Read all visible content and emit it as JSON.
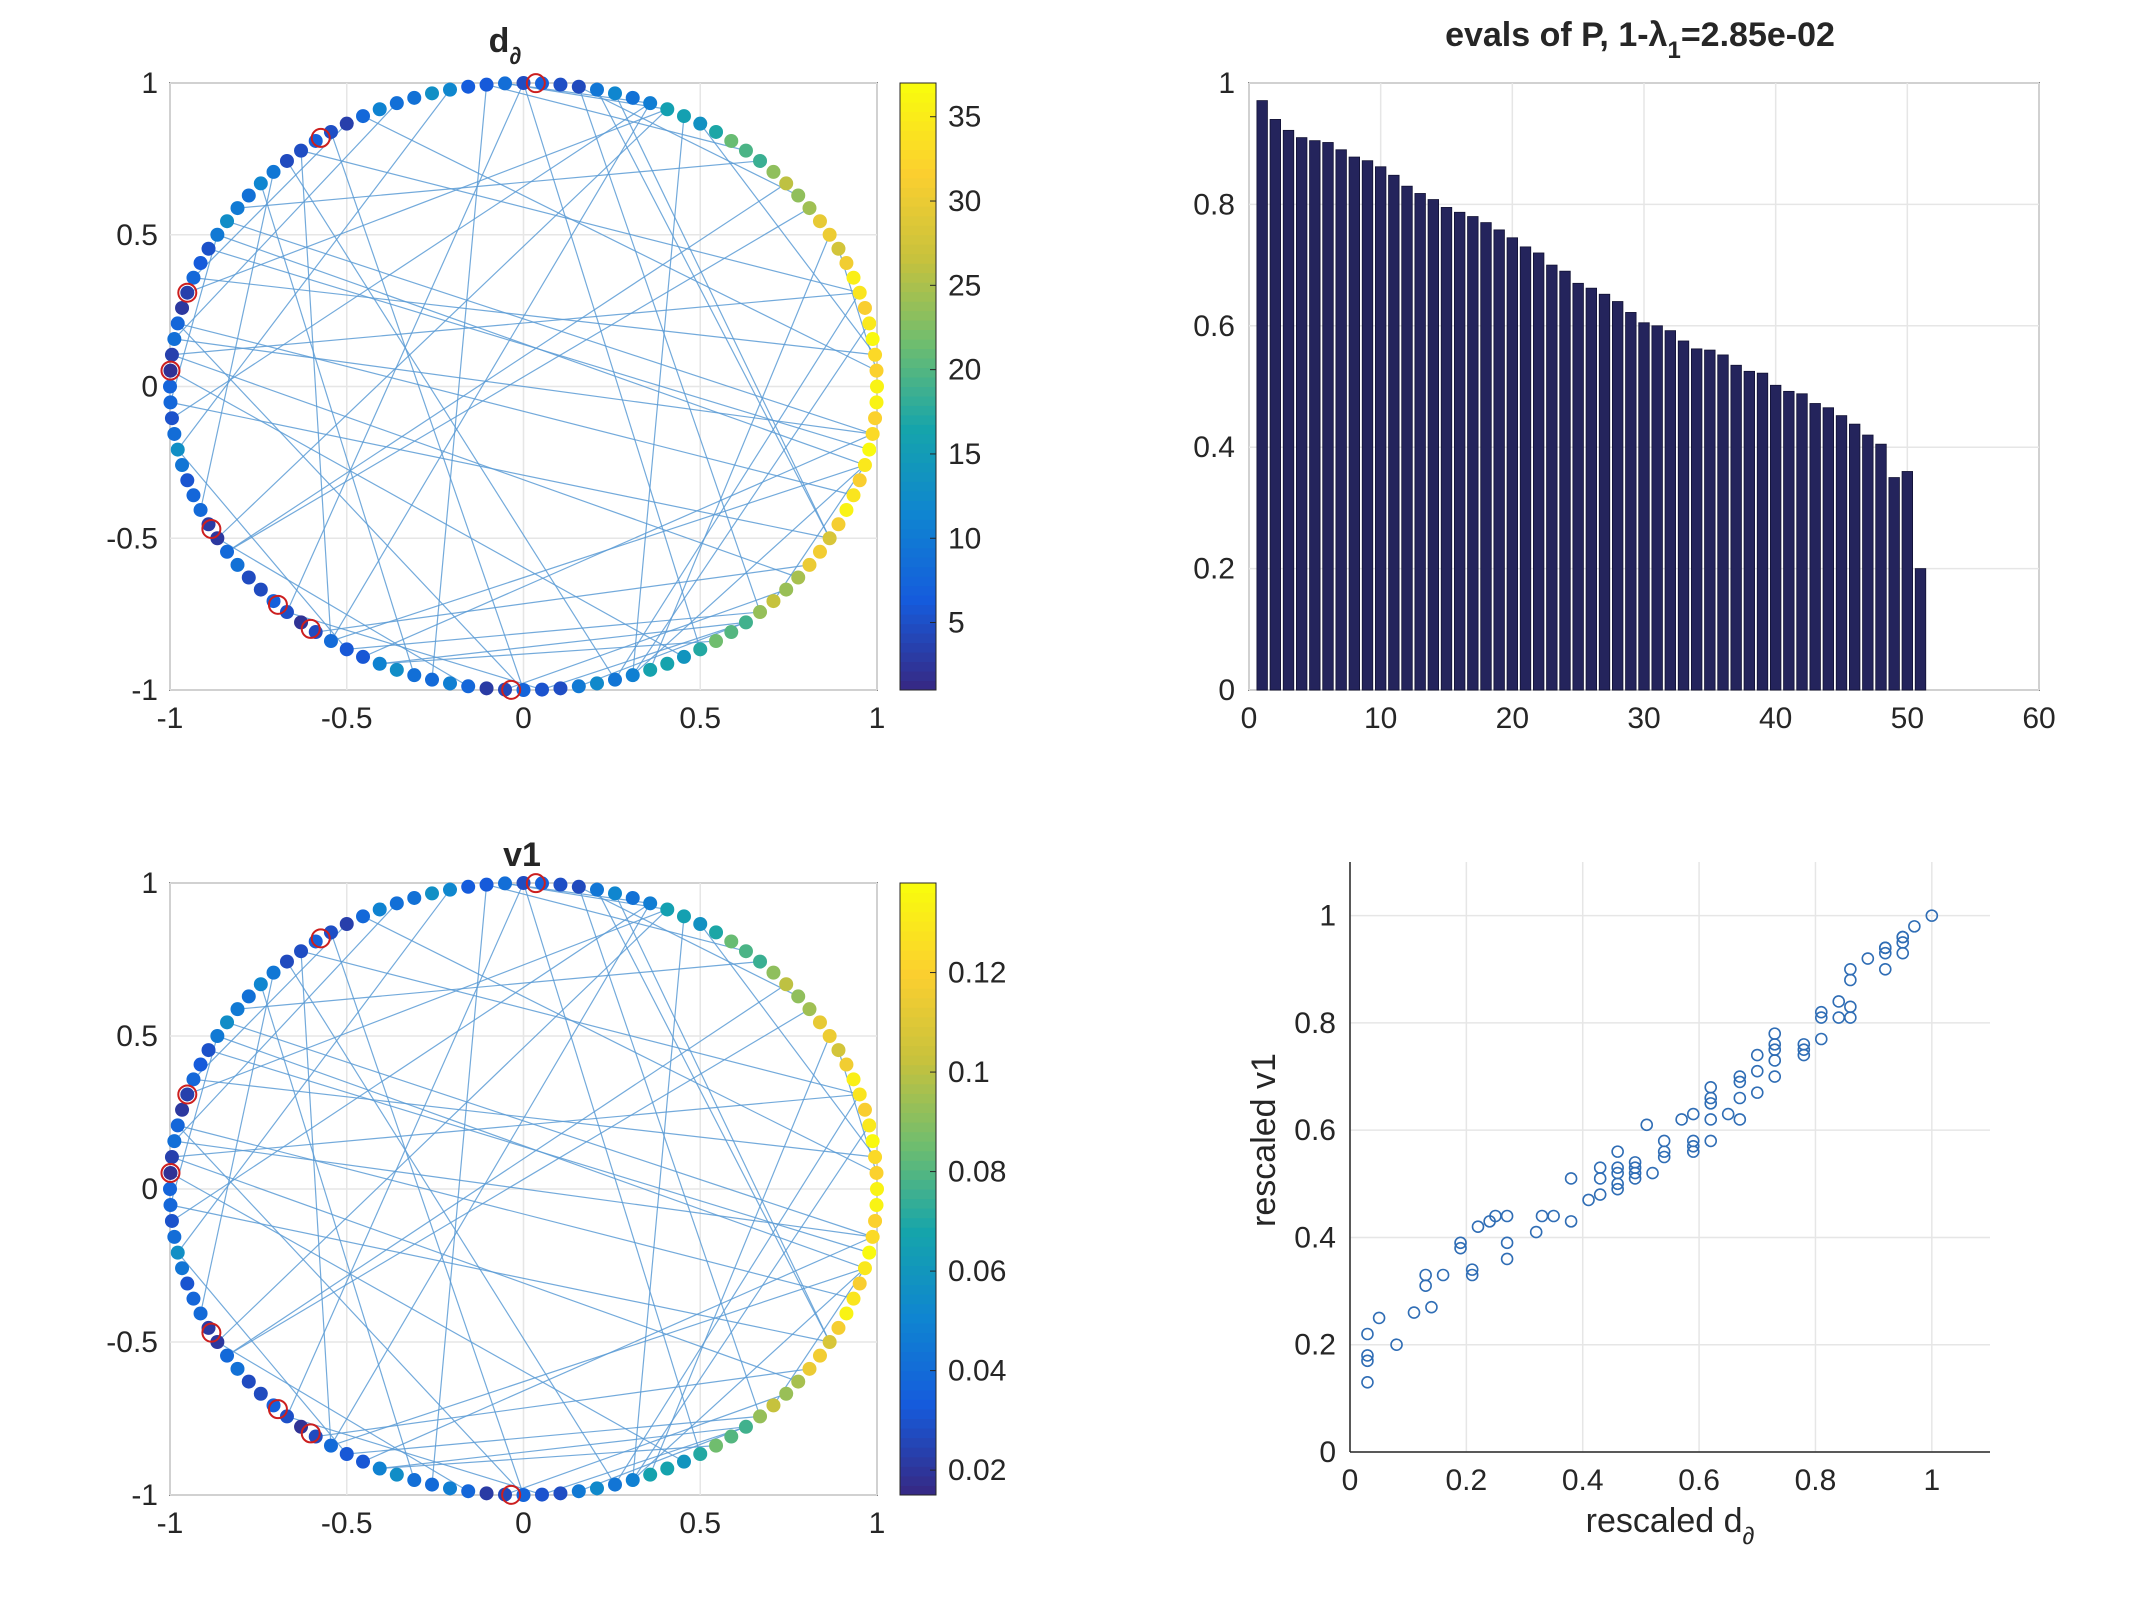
{
  "chart_data": [
    {
      "type": "scatter",
      "title": "d",
      "title_sub": "∂",
      "xlim": [
        -1,
        1
      ],
      "ylim": [
        -1,
        1
      ],
      "xticks": [
        "-1",
        "-0.5",
        "0",
        "0.5",
        "1"
      ],
      "yticks": [
        "1",
        "0.5",
        "0",
        "-0.5",
        "-1"
      ],
      "grid": true,
      "node_count": 120,
      "colorbar": {
        "ticks": [
          "35",
          "30",
          "25",
          "20",
          "15",
          "10",
          "5"
        ],
        "tick_values": [
          35,
          30,
          25,
          20,
          15,
          10,
          5
        ],
        "range": [
          1,
          37
        ]
      },
      "marked_nodes_angle_deg": [
        88,
        125,
        162,
        177,
        208,
        226,
        233,
        268
      ],
      "edge_color": "#5b9bd5"
    },
    {
      "type": "bar",
      "title": "evals of P, 1-λ",
      "title_sub": "1",
      "title_suffix": "=2.85e-02",
      "xlim": [
        0,
        60
      ],
      "ylim": [
        0,
        1
      ],
      "xticks": [
        "0",
        "10",
        "20",
        "30",
        "40",
        "50",
        "60"
      ],
      "yticks": [
        "1",
        "0.8",
        "0.6",
        "0.4",
        "0.2",
        "0"
      ],
      "grid": true,
      "bar_color": "#24245c",
      "values": [
        0.971,
        0.94,
        0.922,
        0.91,
        0.905,
        0.902,
        0.89,
        0.878,
        0.872,
        0.862,
        0.848,
        0.83,
        0.818,
        0.808,
        0.795,
        0.787,
        0.78,
        0.77,
        0.758,
        0.745,
        0.73,
        0.72,
        0.7,
        0.69,
        0.67,
        0.662,
        0.652,
        0.64,
        0.622,
        0.605,
        0.6,
        0.592,
        0.575,
        0.562,
        0.56,
        0.552,
        0.535,
        0.525,
        0.522,
        0.502,
        0.492,
        0.488,
        0.472,
        0.465,
        0.452,
        0.438,
        0.42,
        0.405,
        0.35,
        0.36,
        0.2
      ]
    },
    {
      "type": "scatter",
      "title": "v1",
      "xlim": [
        -1,
        1
      ],
      "ylim": [
        -1,
        1
      ],
      "xticks": [
        "-1",
        "-0.5",
        "0",
        "0.5",
        "1"
      ],
      "yticks": [
        "1",
        "0.5",
        "0",
        "-0.5",
        "-1"
      ],
      "grid": true,
      "node_count": 120,
      "colorbar": {
        "ticks": [
          "0.12",
          "0.1",
          "0.08",
          "0.06",
          "0.04",
          "0.02"
        ],
        "tick_values": [
          0.12,
          0.1,
          0.08,
          0.06,
          0.04,
          0.02
        ],
        "range": [
          0.015,
          0.138
        ]
      },
      "marked_nodes_angle_deg": [
        88,
        125,
        162,
        177,
        208,
        226,
        233,
        268
      ],
      "edge_color": "#5b9bd5"
    },
    {
      "type": "scatter",
      "xlabel": "rescaled d",
      "xlabel_sub": "∂",
      "ylabel": "rescaled v1",
      "xlim": [
        0,
        1.1
      ],
      "ylim": [
        0,
        1.1
      ],
      "xticks": [
        "0",
        "0.2",
        "0.4",
        "0.6",
        "0.8",
        "1"
      ],
      "yticks": [
        "1",
        "0.8",
        "0.6",
        "0.4",
        "0.2",
        "0"
      ],
      "grid": true,
      "marker_color": "#2f6db5",
      "x": [
        0.03,
        0.03,
        0.03,
        0.03,
        0.05,
        0.08,
        0.11,
        0.13,
        0.13,
        0.14,
        0.16,
        0.19,
        0.19,
        0.21,
        0.21,
        0.22,
        0.24,
        0.25,
        0.27,
        0.27,
        0.27,
        0.32,
        0.33,
        0.35,
        0.38,
        0.38,
        0.41,
        0.43,
        0.43,
        0.43,
        0.46,
        0.46,
        0.46,
        0.46,
        0.46,
        0.49,
        0.49,
        0.49,
        0.49,
        0.51,
        0.52,
        0.54,
        0.54,
        0.54,
        0.57,
        0.59,
        0.59,
        0.59,
        0.59,
        0.62,
        0.62,
        0.62,
        0.62,
        0.62,
        0.65,
        0.67,
        0.67,
        0.67,
        0.67,
        0.7,
        0.7,
        0.7,
        0.73,
        0.73,
        0.73,
        0.73,
        0.73,
        0.78,
        0.78,
        0.78,
        0.81,
        0.81,
        0.81,
        0.84,
        0.84,
        0.86,
        0.86,
        0.86,
        0.86,
        0.89,
        0.92,
        0.92,
        0.92,
        0.92,
        0.95,
        0.95,
        0.95,
        0.95,
        0.97,
        1.0
      ],
      "y": [
        0.22,
        0.18,
        0.17,
        0.13,
        0.25,
        0.2,
        0.26,
        0.31,
        0.33,
        0.27,
        0.33,
        0.38,
        0.39,
        0.34,
        0.33,
        0.42,
        0.43,
        0.44,
        0.36,
        0.39,
        0.44,
        0.41,
        0.44,
        0.44,
        0.43,
        0.51,
        0.47,
        0.48,
        0.51,
        0.53,
        0.49,
        0.5,
        0.52,
        0.53,
        0.56,
        0.52,
        0.53,
        0.54,
        0.51,
        0.61,
        0.52,
        0.55,
        0.56,
        0.58,
        0.62,
        0.56,
        0.57,
        0.58,
        0.63,
        0.58,
        0.62,
        0.65,
        0.66,
        0.68,
        0.63,
        0.62,
        0.66,
        0.69,
        0.7,
        0.67,
        0.71,
        0.74,
        0.7,
        0.73,
        0.75,
        0.76,
        0.78,
        0.74,
        0.75,
        0.76,
        0.77,
        0.81,
        0.82,
        0.84,
        0.81,
        0.81,
        0.83,
        0.88,
        0.9,
        0.92,
        0.9,
        0.93,
        0.94,
        0.94,
        0.93,
        0.95,
        0.96,
        0.96,
        0.98,
        1.0
      ]
    }
  ]
}
